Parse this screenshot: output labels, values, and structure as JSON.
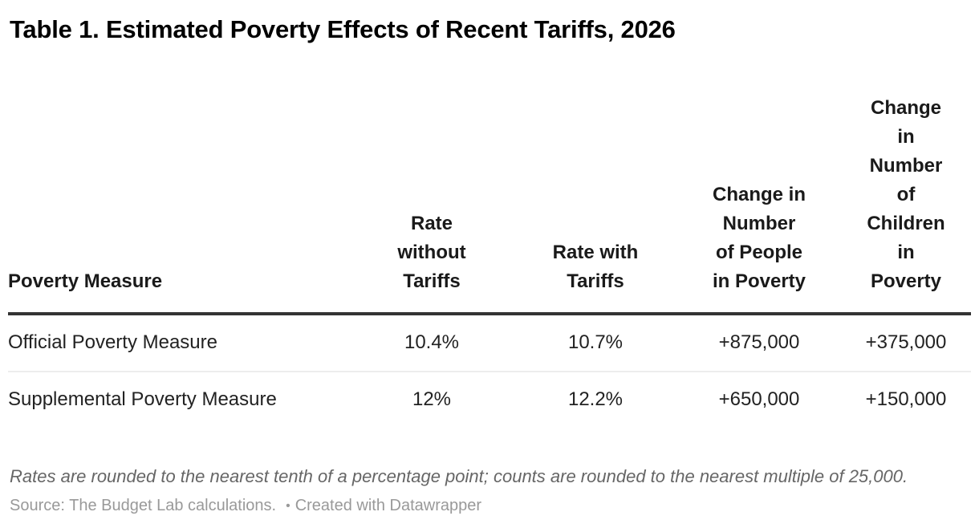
{
  "title": "Table 1. Estimated Poverty Effects of Recent Tariffs, 2026",
  "chart_data": {
    "type": "table",
    "title": "Table 1. Estimated Poverty Effects of Recent Tariffs, 2026",
    "columns": [
      "Poverty Measure",
      "Rate without Tariffs",
      "Rate with Tariffs",
      "Change in Number of People in Poverty",
      "Change in Number of Children in Poverty"
    ],
    "rows": [
      [
        "Official Poverty Measure",
        "10.4%",
        "10.7%",
        "+875,000",
        "+375,000"
      ],
      [
        "Supplemental Poverty Measure",
        "12%",
        "12.2%",
        "+650,000",
        "+150,000"
      ]
    ],
    "notes": "Rates are rounded to the nearest tenth of a percentage point; counts are rounded to the nearest multiple of 25,000.",
    "source": "Source: The Budget Lab calculations.",
    "credit": "Created with Datawrapper"
  },
  "table": {
    "headers": [
      "Poverty Measure",
      "Rate\nwithout\nTariffs",
      "Rate with\nTariffs",
      "Change in\nNumber\nof People\nin Poverty",
      "Change\nin\nNumber\nof\nChildren\nin\nPoverty"
    ],
    "rows": [
      [
        "Official Poverty Measure",
        "10.4%",
        "10.7%",
        "+875,000",
        "+375,000"
      ],
      [
        "Supplemental Poverty Measure",
        "12%",
        "12.2%",
        "+650,000",
        "+150,000"
      ]
    ]
  },
  "footer": {
    "notes": "Rates are rounded to the nearest tenth of a percentage point; counts are rounded to the nearest multiple of 25,000.",
    "source_label": "Source: The Budget Lab calculations.",
    "separator": "•",
    "credit_link": "Created with Datawrapper"
  },
  "colors": {
    "title": "#000000",
    "body_text": "#222222",
    "header_rule": "#333333",
    "row_divider": "#ededed",
    "notes_text": "#666666",
    "source_text": "#999999"
  }
}
